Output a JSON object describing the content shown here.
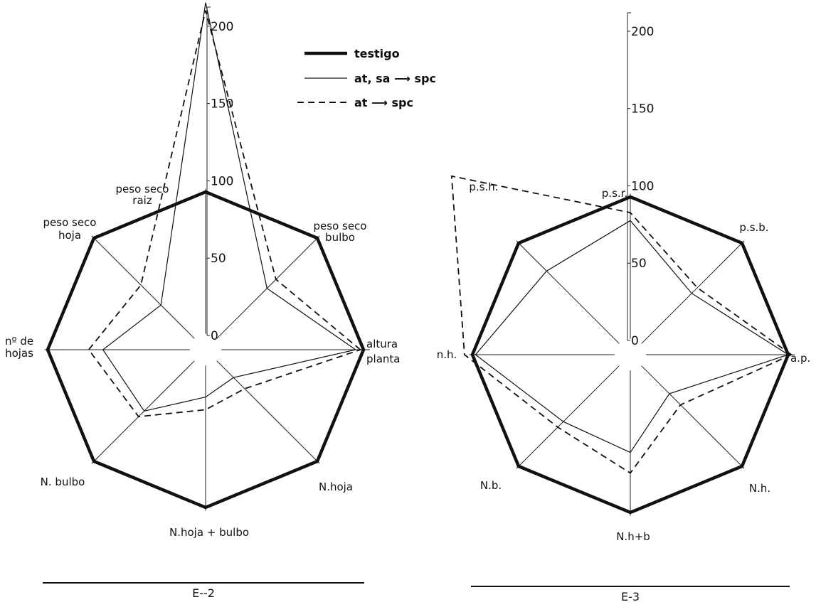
{
  "chart_data": [
    {
      "type": "radar",
      "title": "E--2",
      "ylim": [
        0,
        220
      ],
      "ticks": [
        "0",
        "50",
        "100",
        "150",
        "200"
      ],
      "axes": [
        [
          "altura",
          "planta"
        ],
        [
          "peso seco",
          "bulbo"
        ],
        [
          "peso seco",
          "raiz"
        ],
        [
          "peso seco",
          "hoja"
        ],
        [
          "nº de",
          "hojas"
        ],
        [
          "N. bulbo"
        ],
        [
          "N.hoja + bulbo"
        ],
        [
          "N.hoja"
        ]
      ],
      "series": [
        {
          "name": "testigo",
          "values": [
            100,
            100,
            100,
            100,
            100,
            100,
            100,
            100
          ]
        },
        {
          "name": "at, sa ⟶ spc",
          "values": [
            95,
            55,
            220,
            40,
            65,
            55,
            30,
            25
          ]
        },
        {
          "name": "at ⟶ spc",
          "values": [
            98,
            63,
            215,
            58,
            74,
            60,
            38,
            35
          ]
        }
      ]
    },
    {
      "type": "radar",
      "title": "E-3",
      "ylim": [
        0,
        220
      ],
      "ticks": [
        "0",
        "50",
        "100",
        "150",
        "200"
      ],
      "axes": [
        [
          "a.p."
        ],
        [
          "p.s.b."
        ],
        [
          "p.s.r."
        ],
        [
          "p.s.h."
        ],
        [
          "n.h."
        ],
        [
          "N.b."
        ],
        [
          "N.h+b"
        ],
        [
          "N.h."
        ]
      ],
      "series": [
        {
          "name": "testigo",
          "values": [
            100,
            100,
            100,
            100,
            100,
            100,
            100,
            100
          ]
        },
        {
          "name": "at, sa ⟶ spc",
          "values": [
            100,
            55,
            85,
            75,
            98,
            60,
            62,
            35
          ]
        },
        {
          "name": "at ⟶ spc",
          "values": [
            102,
            60,
            90,
            160,
            105,
            65,
            75,
            45
          ]
        }
      ]
    }
  ],
  "legend": [
    {
      "label": "testigo",
      "style": "thick"
    },
    {
      "label": "at, sa ⟶ spc",
      "style": "thin"
    },
    {
      "label": "at ⟶ spc",
      "style": "dashed"
    }
  ],
  "colors": {
    "ink": "#111111",
    "background": "#ffffff"
  }
}
